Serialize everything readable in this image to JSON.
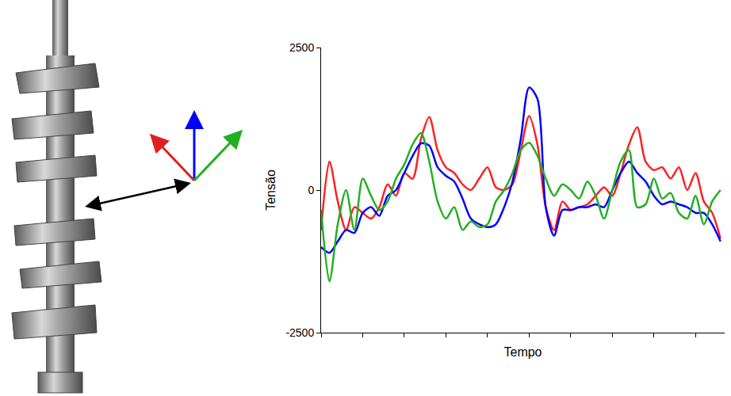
{
  "chart_data": {
    "type": "line",
    "x_label": "Tempo",
    "y_label": "Tensão",
    "x": [
      0,
      2,
      4,
      6,
      8,
      10,
      12,
      14,
      16,
      18,
      20,
      22,
      24,
      26,
      28,
      30,
      32,
      34,
      36,
      38,
      40,
      42,
      44,
      46,
      48,
      50,
      52,
      54,
      56,
      58,
      60,
      62,
      64,
      66,
      68,
      70,
      72,
      74,
      76,
      78,
      80,
      82,
      84,
      86,
      88,
      90,
      92,
      94,
      96
    ],
    "series": [
      {
        "color": "#ff2020",
        "values": [
          -700,
          500,
          -200,
          -700,
          -300,
          -400,
          -500,
          -300,
          100,
          -100,
          300,
          200,
          900,
          1280,
          700,
          400,
          300,
          100,
          0,
          200,
          400,
          50,
          0,
          100,
          700,
          1300,
          800,
          -300,
          -700,
          -200,
          -350,
          -300,
          -250,
          -100,
          50,
          -100,
          300,
          800,
          1100,
          500,
          350,
          400,
          200,
          400,
          0,
          300,
          -200,
          -400,
          -850
        ]
      },
      {
        "color": "#0000ff",
        "values": [
          -1000,
          -1100,
          -900,
          -700,
          -750,
          -400,
          -300,
          -450,
          -100,
          0,
          300,
          600,
          820,
          780,
          400,
          250,
          150,
          -150,
          -500,
          -600,
          -650,
          -600,
          -300,
          150,
          900,
          1800,
          1600,
          -300,
          -800,
          -350,
          -350,
          -300,
          -300,
          -250,
          -300,
          0,
          300,
          500,
          300,
          150,
          -100,
          -250,
          -200,
          -250,
          -300,
          -400,
          -400,
          -600,
          -900
        ]
      },
      {
        "color": "#22b022",
        "values": [
          -350,
          -1600,
          -600,
          0,
          -700,
          200,
          -100,
          -350,
          -200,
          200,
          450,
          800,
          1000,
          500,
          -200,
          -500,
          -300,
          -700,
          -550,
          -650,
          -600,
          -200,
          0,
          300,
          700,
          830,
          600,
          200,
          -100,
          100,
          0,
          -150,
          150,
          -100,
          -500,
          0,
          500,
          700,
          -300,
          -250,
          200,
          -150,
          -50,
          -400,
          -500,
          -100,
          -600,
          -200,
          0
        ]
      }
    ],
    "xlim": [
      0,
      97
    ],
    "xticks": [
      0,
      10,
      20,
      30,
      40,
      50,
      60,
      70,
      80,
      90
    ],
    "ylim": [
      -2500,
      2500
    ],
    "yticks": [
      -2500,
      0,
      2500
    ],
    "tick_labels": "y",
    "grid": false
  }
}
